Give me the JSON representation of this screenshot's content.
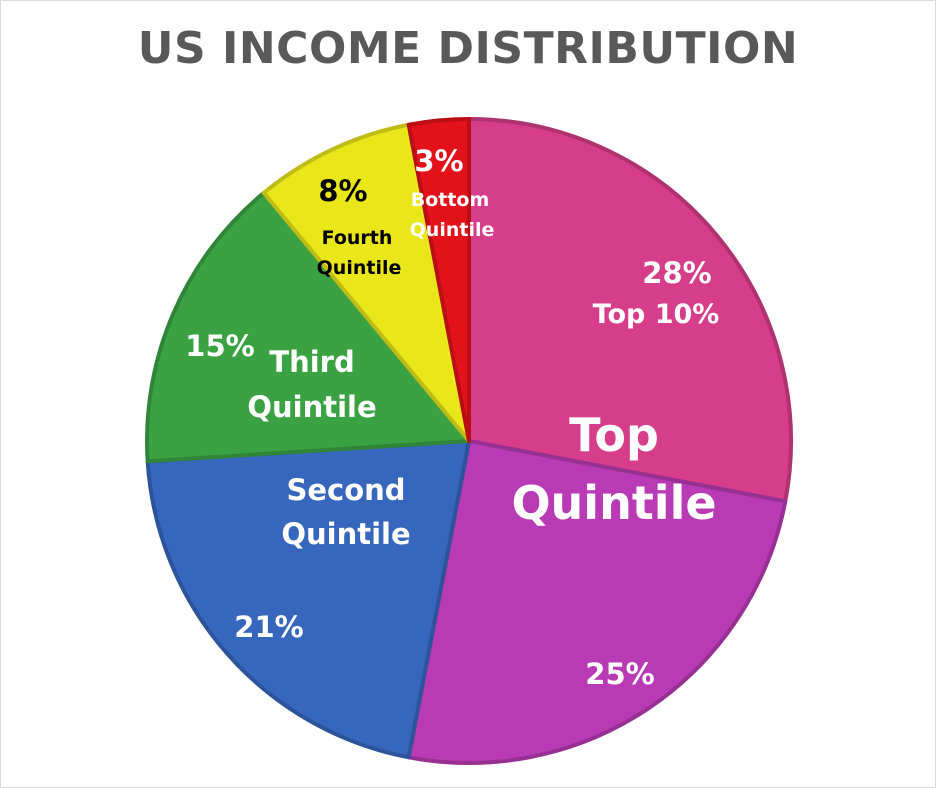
{
  "chart_data": {
    "type": "pie",
    "title": "US INCOME DISTRIBUTION",
    "slices": [
      {
        "name": "Top 10%",
        "value": 28,
        "value_label": "28%",
        "color": "#d63d8a"
      },
      {
        "name": "Top Quintile (remainder)",
        "value": 25,
        "value_label": "25%",
        "color": "#b93ab5"
      },
      {
        "name": "Second Quintile",
        "value": 21,
        "value_label": "21%",
        "color": "#3766bd"
      },
      {
        "name": "Third Quintile",
        "value": 15,
        "value_label": "15%",
        "color": "#3ba244"
      },
      {
        "name": "Fourth Quintile",
        "value": 8,
        "value_label": "8%",
        "color": "#e9e61a"
      },
      {
        "name": "Bottom Quintile",
        "value": 3,
        "value_label": "3%",
        "color": "#e3111a"
      }
    ],
    "labels": {
      "top10_pct": "28%",
      "top10_name": "Top 10%",
      "top_quintile_line1": "Top",
      "top_quintile_line2": "Quintile",
      "top_rest_pct": "25%",
      "second_pct": "21%",
      "second_line1": "Second",
      "second_line2": "Quintile",
      "third_pct": "15%",
      "third_line1": "Third",
      "third_line2": "Quintile",
      "fourth_pct": "8%",
      "fourth_line1": "Fourth",
      "fourth_line2": "Quintile",
      "bottom_pct": "3%",
      "bottom_line1": "Bottom",
      "bottom_line2": "Quintile"
    }
  }
}
